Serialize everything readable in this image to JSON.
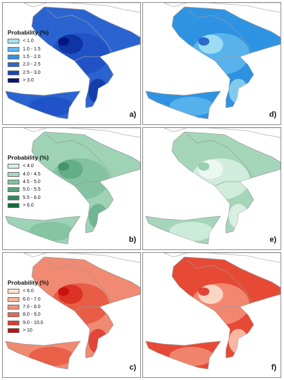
{
  "panels": [
    {
      "letter": "a)",
      "layers": [
        "#2b63d1",
        "#1e4fc4",
        "#0d2f9e",
        "#00137a"
      ],
      "legend": {
        "title": "Probability (%)",
        "items": [
          {
            "label": "< 1.0",
            "color": "#a6e3f2"
          },
          {
            "label": "1.0 - 1.5",
            "color": "#5fb8ee"
          },
          {
            "label": "1.5 - 2.0",
            "color": "#3590e4"
          },
          {
            "label": "2.0 - 2.5",
            "color": "#2a67d4"
          },
          {
            "label": "2.5 - 3.0",
            "color": "#1944b2"
          },
          {
            "label": "> 3.0",
            "color": "#07147a"
          }
        ]
      }
    },
    {
      "letter": "b)",
      "layers": [
        "#9ed3b6",
        "#7fc09d",
        "#5ea983",
        "#3d8f67"
      ],
      "legend": {
        "title": "Probability (%)",
        "items": [
          {
            "label": "< 4.0",
            "color": "#d6f0e2"
          },
          {
            "label": "4.0 - 4.5",
            "color": "#a8d9bd"
          },
          {
            "label": "4.5 - 5.0",
            "color": "#7fc29c"
          },
          {
            "label": "5.0 - 5.5",
            "color": "#55a57b"
          },
          {
            "label": "5.5 - 6.0",
            "color": "#2f8a5b"
          },
          {
            "label": "> 6.0",
            "color": "#136b3c"
          }
        ]
      }
    },
    {
      "letter": "c)",
      "layers": [
        "#f08a72",
        "#e8553f",
        "#d92b22",
        "#c40a0a"
      ],
      "legend": {
        "title": "Probability (%)",
        "items": [
          {
            "label": "< 6.0",
            "color": "#fde3d2"
          },
          {
            "label": "6.0 - 7.0",
            "color": "#f9b79b"
          },
          {
            "label": "7.0 - 8.0",
            "color": "#f3917a"
          },
          {
            "label": "8.0 - 9.0",
            "color": "#eb6650"
          },
          {
            "label": "9.0 - 10.0",
            "color": "#df3a2c"
          },
          {
            "label": "> 10",
            "color": "#c70b0b"
          }
        ]
      }
    },
    {
      "letter": "d)",
      "layers": [
        "#2f93e2",
        "#5fb8ee",
        "#a6e3f2",
        "#1c56c4"
      ],
      "legend": null
    },
    {
      "letter": "e)",
      "layers": [
        "#a5d6ba",
        "#d6f0e2",
        "#f0faf4",
        "#8cc8a6"
      ],
      "legend": null
    },
    {
      "letter": "f)",
      "layers": [
        "#e64a35",
        "#f3917a",
        "#fde3d2",
        "#d92b22"
      ],
      "legend": null
    }
  ]
}
